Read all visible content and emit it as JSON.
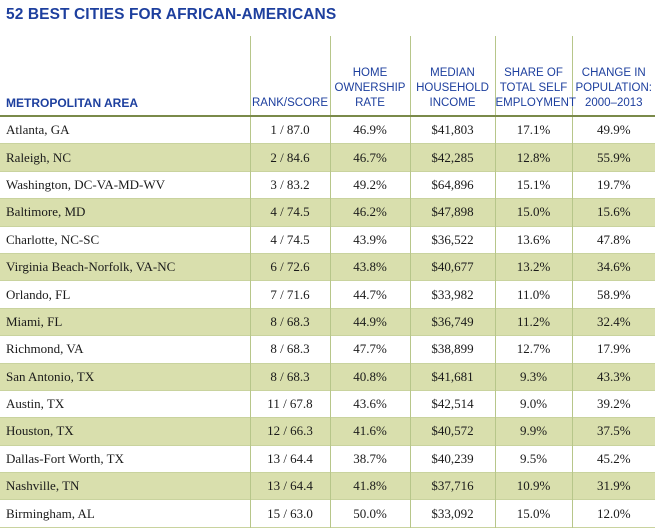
{
  "title": "52 BEST CITIES FOR AFRICAN-AMERICANS",
  "columns": {
    "metro": "METROPOLITAN AREA",
    "rank": "RANK/SCORE",
    "home": [
      "HOME",
      "OWNERSHIP",
      "RATE"
    ],
    "income": [
      "MEDIAN",
      "HOUSEHOLD",
      "INCOME"
    ],
    "self": [
      "SHARE OF",
      "TOTAL SELF",
      "EMPLOYMENT"
    ],
    "pop": [
      "CHANGE IN",
      "POPULATION:",
      "2000–2013"
    ]
  },
  "rows": [
    [
      "Atlanta, GA",
      "1 / 87.0",
      "46.9%",
      "$41,803",
      "17.1%",
      "49.9%"
    ],
    [
      "Raleigh, NC",
      "2 / 84.6",
      "46.7%",
      "$42,285",
      "12.8%",
      "55.9%"
    ],
    [
      "Washington, DC-VA-MD-WV",
      "3 / 83.2",
      "49.2%",
      "$64,896",
      "15.1%",
      "19.7%"
    ],
    [
      "Baltimore, MD",
      "4 / 74.5",
      "46.2%",
      "$47,898",
      "15.0%",
      "15.6%"
    ],
    [
      "Charlotte, NC-SC",
      "4 / 74.5",
      "43.9%",
      "$36,522",
      "13.6%",
      "47.8%"
    ],
    [
      "Virginia Beach-Norfolk, VA-NC",
      "6 / 72.6",
      "43.8%",
      "$40,677",
      "13.2%",
      "34.6%"
    ],
    [
      "Orlando, FL",
      "7 / 71.6",
      "44.7%",
      "$33,982",
      "11.0%",
      "58.9%"
    ],
    [
      "Miami, FL",
      "8 / 68.3",
      "44.9%",
      "$36,749",
      "11.2%",
      "32.4%"
    ],
    [
      "Richmond, VA",
      "8 / 68.3",
      "47.7%",
      "$38,899",
      "12.7%",
      "17.9%"
    ],
    [
      "San Antonio, TX",
      "8 / 68.3",
      "40.8%",
      "$41,681",
      "9.3%",
      "43.3%"
    ],
    [
      "Austin, TX",
      "11 / 67.8",
      "43.6%",
      "$42,514",
      "9.0%",
      "39.2%"
    ],
    [
      "Houston, TX",
      "12 / 66.3",
      "41.6%",
      "$40,572",
      "9.9%",
      "37.5%"
    ],
    [
      "Dallas-Fort Worth, TX",
      "13 / 64.4",
      "38.7%",
      "$40,239",
      "9.5%",
      "45.2%"
    ],
    [
      "Nashville, TN",
      "13 / 64.4",
      "41.8%",
      "$37,716",
      "10.9%",
      "31.9%"
    ],
    [
      "Birmingham, AL",
      "15 / 63.0",
      "50.0%",
      "$33,092",
      "15.0%",
      "12.0%"
    ]
  ],
  "colors": {
    "title": "#1d3f9e",
    "header_text": "#1d3f9e",
    "alt_row": "#d9dfad",
    "divider": "#b7c68a"
  }
}
